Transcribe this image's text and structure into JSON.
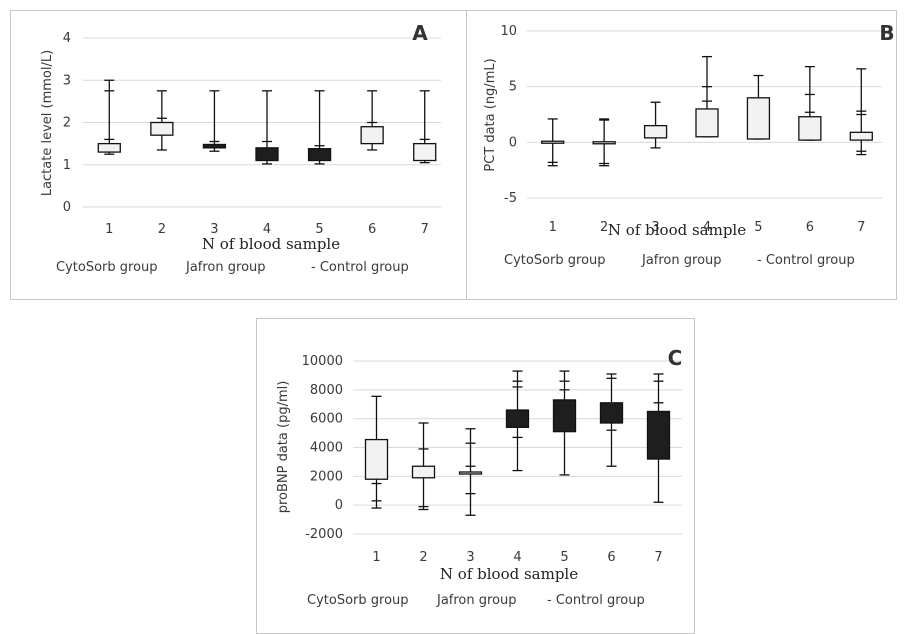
{
  "chart_data": [
    {
      "panel": "A",
      "type": "boxplot",
      "ylabel": "Lactate level (mmol/L)",
      "xlabel": "N of blood sample",
      "ylim": [
        0,
        4
      ],
      "yticks": [
        "0",
        "1",
        "2",
        "3",
        "4"
      ],
      "categories": [
        "1",
        "2",
        "3",
        "4",
        "5",
        "6",
        "7"
      ],
      "legend": [
        "CytoSorb group",
        "Jafron group",
        "- Control group"
      ],
      "boxes": [
        {
          "x": "1",
          "fill": "#f2f2f2",
          "min": 1.25,
          "q1": 1.3,
          "q3": 1.5,
          "max": 3.0
        },
        {
          "x": "2",
          "fill": "#f2f2f2",
          "min": 1.35,
          "q1": 1.7,
          "q3": 2.0,
          "max": 2.75
        },
        {
          "x": "3",
          "fill": "#1e1e1e",
          "min": 1.32,
          "q1": 1.4,
          "q3": 1.48,
          "max": 2.75
        },
        {
          "x": "4",
          "fill": "#1e1e1e",
          "min": 1.02,
          "q1": 1.1,
          "q3": 1.4,
          "max": 2.75
        },
        {
          "x": "5",
          "fill": "#1e1e1e",
          "min": 1.02,
          "q1": 1.1,
          "q3": 1.38,
          "max": 2.75
        },
        {
          "x": "6",
          "fill": "#f2f2f2",
          "min": 1.35,
          "q1": 1.5,
          "q3": 1.9,
          "max": 2.75
        },
        {
          "x": "7",
          "fill": "#f2f2f2",
          "min": 1.05,
          "q1": 1.1,
          "q3": 1.5,
          "max": 2.75
        }
      ],
      "extra_ticks": [
        [
          2.75,
          1.6
        ],
        [
          2.1
        ],
        [
          1.55
        ],
        [
          1.55
        ],
        [
          1.45
        ],
        [
          2.0
        ],
        [
          1.6
        ]
      ]
    },
    {
      "panel": "B",
      "type": "boxplot",
      "ylabel": "PCT data (ng/mL)",
      "xlabel": "N of blood sample",
      "ylim": [
        -5,
        10
      ],
      "yticks": [
        "-5",
        "0",
        "5",
        "10"
      ],
      "categories": [
        "1",
        "2",
        "3",
        "4",
        "5",
        "6",
        "7"
      ],
      "legend": [
        "CytoSorb group",
        "Jafron group",
        "- Control group"
      ],
      "boxes": [
        {
          "x": "1",
          "fill": "#f2f2f2",
          "min": -2.1,
          "q1": 0.0,
          "q3": 0.1,
          "max": 2.1
        },
        {
          "x": "2",
          "fill": "#f2f2f2",
          "min": -2.1,
          "q1": 0.0,
          "q3": 0.05,
          "max": 2.1
        },
        {
          "x": "3",
          "fill": "#f2f2f2",
          "min": -0.5,
          "q1": 0.4,
          "q3": 1.5,
          "max": 3.6
        },
        {
          "x": "4",
          "fill": "#f2f2f2",
          "min": 0.5,
          "q1": 0.5,
          "q3": 3.0,
          "max": 7.7
        },
        {
          "x": "5",
          "fill": "#f2f2f2",
          "min": 0.3,
          "q1": 0.3,
          "q3": 4.0,
          "max": 6.0
        },
        {
          "x": "6",
          "fill": "#f2f2f2",
          "min": 0.2,
          "q1": 0.2,
          "q3": 2.3,
          "max": 6.8
        },
        {
          "x": "7",
          "fill": "#f2f2f2",
          "min": -1.1,
          "q1": 0.2,
          "q3": 0.9,
          "max": 6.6
        }
      ],
      "extra_ticks": [
        [
          -1.8
        ],
        [
          -1.9,
          2.0
        ],
        [
          1.4
        ],
        [
          5.0,
          3.7
        ],
        [],
        [
          4.3,
          2.7
        ],
        [
          2.8,
          2.5,
          -0.8
        ]
      ]
    },
    {
      "panel": "C",
      "type": "boxplot",
      "ylabel": "proBNP data (pg/ml)",
      "xlabel": "N of blood sample",
      "ylim": [
        -2000,
        10000
      ],
      "yticks": [
        "-2000",
        "0",
        "2000",
        "4000",
        "6000",
        "8000",
        "10000"
      ],
      "categories": [
        "1",
        "2",
        "3",
        "4",
        "5",
        "6",
        "7"
      ],
      "legend": [
        "CytoSorb group",
        "Jafron group",
        "- Control group"
      ],
      "boxes": [
        {
          "x": "1",
          "fill": "#f2f2f2",
          "min": -200,
          "q1": 1800,
          "q3": 4550,
          "max": 7550
        },
        {
          "x": "2",
          "fill": "#f2f2f2",
          "min": -300,
          "q1": 1900,
          "q3": 2700,
          "max": 5700
        },
        {
          "x": "3",
          "fill": "#f2f2f2",
          "min": -700,
          "q1": 2200,
          "q3": 2300,
          "max": 5300
        },
        {
          "x": "4",
          "fill": "#1e1e1e",
          "min": 2400,
          "q1": 5400,
          "q3": 6600,
          "max": 9300
        },
        {
          "x": "5",
          "fill": "#1e1e1e",
          "min": 2100,
          "q1": 5100,
          "q3": 7300,
          "max": 9300
        },
        {
          "x": "6",
          "fill": "#1e1e1e",
          "min": 2700,
          "q1": 5700,
          "q3": 7100,
          "max": 9100
        },
        {
          "x": "7",
          "fill": "#1e1e1e",
          "min": 200,
          "q1": 3200,
          "q3": 6500,
          "max": 9100
        }
      ],
      "extra_ticks": [
        [
          1500,
          300
        ],
        [
          3900,
          -100
        ],
        [
          4300,
          2700,
          800
        ],
        [
          8600,
          8200,
          4700
        ],
        [
          8600,
          8000
        ],
        [
          8800,
          5200
        ],
        [
          8600,
          7100
        ]
      ]
    }
  ],
  "panels": {
    "a": {
      "label": "A"
    },
    "b": {
      "label": "B"
    },
    "c": {
      "label": "C"
    }
  }
}
